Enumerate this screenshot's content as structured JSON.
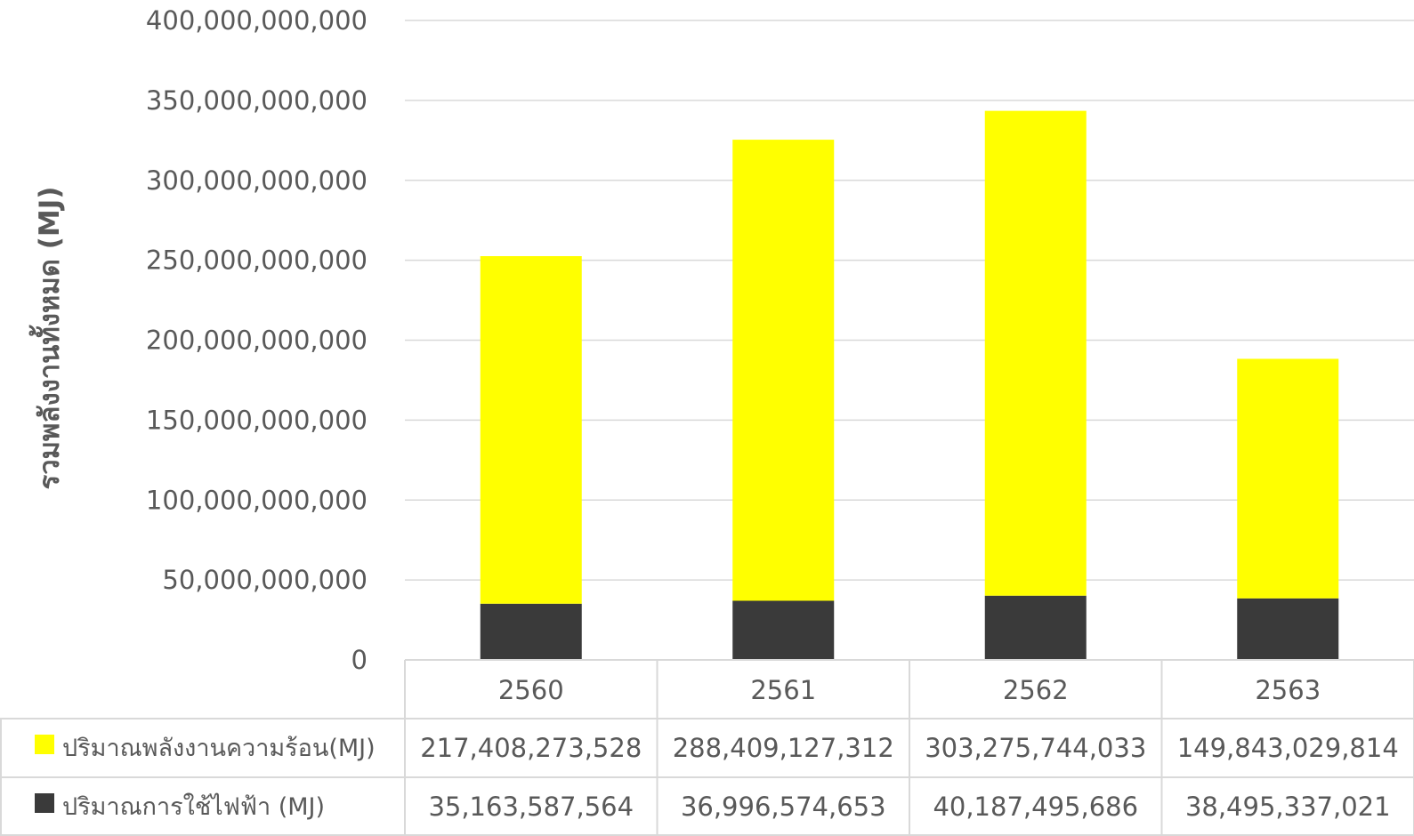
{
  "chart_data": {
    "type": "bar",
    "stacked": true,
    "categories": [
      "2560",
      "2561",
      "2562",
      "2563"
    ],
    "series": [
      {
        "name": "ปริมาณการใช้ไฟฟ้า (MJ)",
        "color": "#3a3a3a",
        "values": [
          35163587564,
          36996574653,
          40187495686,
          38495337021
        ],
        "labels": [
          "35,163,587,564",
          "36,996,574,653",
          "40,187,495,686",
          "38,495,337,021"
        ]
      },
      {
        "name": "ปริมาณพลังงานความร้อน(MJ)",
        "color": "#ffff00",
        "values": [
          217408273528,
          288409127312,
          303275744033,
          149843029814
        ],
        "labels": [
          "217,408,273,528",
          "288,409,127,312",
          "303,275,744,033",
          "149,843,029,814"
        ]
      }
    ],
    "table_row_order": [
      1,
      0
    ],
    "title": "",
    "xlabel": "",
    "ylabel": "รวมพลังงานทั้งหมด (MJ)",
    "ylim": [
      0,
      400000000000
    ],
    "yticks": [
      0,
      50000000000,
      100000000000,
      150000000000,
      200000000000,
      250000000000,
      300000000000,
      350000000000,
      400000000000
    ],
    "ytick_labels": [
      "0",
      "50,000,000,000",
      "100,000,000,000",
      "150,000,000,000",
      "200,000,000,000",
      "250,000,000,000",
      "300,000,000,000",
      "350,000,000,000",
      "400,000,000,000"
    ],
    "grid": true,
    "legend": "data-table"
  }
}
